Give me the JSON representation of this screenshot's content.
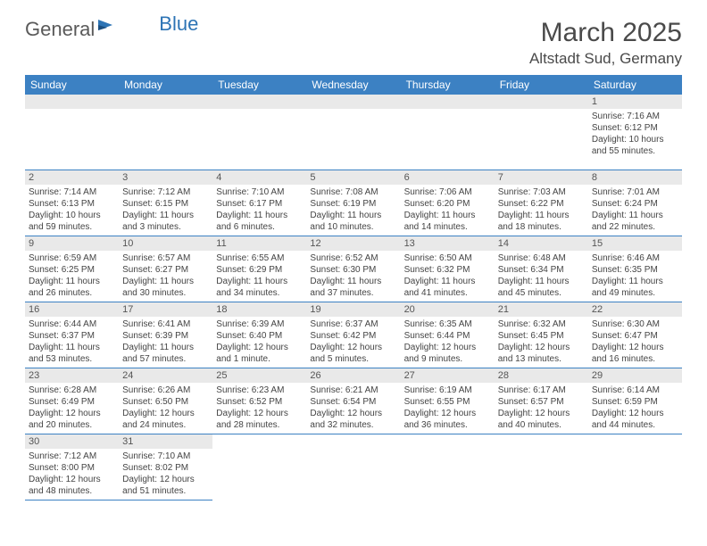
{
  "logo": {
    "part1": "General",
    "part2": "Blue"
  },
  "title": "March 2025",
  "location": "Altstadt Sud, Germany",
  "colors": {
    "header_bg": "#3c81c3",
    "header_text": "#ffffff",
    "daynum_bg": "#e9e9e9",
    "border": "#3c81c3",
    "logo_blue": "#2d74b5",
    "text": "#3e3e3e"
  },
  "day_headers": [
    "Sunday",
    "Monday",
    "Tuesday",
    "Wednesday",
    "Thursday",
    "Friday",
    "Saturday"
  ],
  "weeks": [
    [
      null,
      null,
      null,
      null,
      null,
      null,
      {
        "n": "1",
        "sr": "Sunrise: 7:16 AM",
        "ss": "Sunset: 6:12 PM",
        "dl": "Daylight: 10 hours and 55 minutes."
      }
    ],
    [
      {
        "n": "2",
        "sr": "Sunrise: 7:14 AM",
        "ss": "Sunset: 6:13 PM",
        "dl": "Daylight: 10 hours and 59 minutes."
      },
      {
        "n": "3",
        "sr": "Sunrise: 7:12 AM",
        "ss": "Sunset: 6:15 PM",
        "dl": "Daylight: 11 hours and 3 minutes."
      },
      {
        "n": "4",
        "sr": "Sunrise: 7:10 AM",
        "ss": "Sunset: 6:17 PM",
        "dl": "Daylight: 11 hours and 6 minutes."
      },
      {
        "n": "5",
        "sr": "Sunrise: 7:08 AM",
        "ss": "Sunset: 6:19 PM",
        "dl": "Daylight: 11 hours and 10 minutes."
      },
      {
        "n": "6",
        "sr": "Sunrise: 7:06 AM",
        "ss": "Sunset: 6:20 PM",
        "dl": "Daylight: 11 hours and 14 minutes."
      },
      {
        "n": "7",
        "sr": "Sunrise: 7:03 AM",
        "ss": "Sunset: 6:22 PM",
        "dl": "Daylight: 11 hours and 18 minutes."
      },
      {
        "n": "8",
        "sr": "Sunrise: 7:01 AM",
        "ss": "Sunset: 6:24 PM",
        "dl": "Daylight: 11 hours and 22 minutes."
      }
    ],
    [
      {
        "n": "9",
        "sr": "Sunrise: 6:59 AM",
        "ss": "Sunset: 6:25 PM",
        "dl": "Daylight: 11 hours and 26 minutes."
      },
      {
        "n": "10",
        "sr": "Sunrise: 6:57 AM",
        "ss": "Sunset: 6:27 PM",
        "dl": "Daylight: 11 hours and 30 minutes."
      },
      {
        "n": "11",
        "sr": "Sunrise: 6:55 AM",
        "ss": "Sunset: 6:29 PM",
        "dl": "Daylight: 11 hours and 34 minutes."
      },
      {
        "n": "12",
        "sr": "Sunrise: 6:52 AM",
        "ss": "Sunset: 6:30 PM",
        "dl": "Daylight: 11 hours and 37 minutes."
      },
      {
        "n": "13",
        "sr": "Sunrise: 6:50 AM",
        "ss": "Sunset: 6:32 PM",
        "dl": "Daylight: 11 hours and 41 minutes."
      },
      {
        "n": "14",
        "sr": "Sunrise: 6:48 AM",
        "ss": "Sunset: 6:34 PM",
        "dl": "Daylight: 11 hours and 45 minutes."
      },
      {
        "n": "15",
        "sr": "Sunrise: 6:46 AM",
        "ss": "Sunset: 6:35 PM",
        "dl": "Daylight: 11 hours and 49 minutes."
      }
    ],
    [
      {
        "n": "16",
        "sr": "Sunrise: 6:44 AM",
        "ss": "Sunset: 6:37 PM",
        "dl": "Daylight: 11 hours and 53 minutes."
      },
      {
        "n": "17",
        "sr": "Sunrise: 6:41 AM",
        "ss": "Sunset: 6:39 PM",
        "dl": "Daylight: 11 hours and 57 minutes."
      },
      {
        "n": "18",
        "sr": "Sunrise: 6:39 AM",
        "ss": "Sunset: 6:40 PM",
        "dl": "Daylight: 12 hours and 1 minute."
      },
      {
        "n": "19",
        "sr": "Sunrise: 6:37 AM",
        "ss": "Sunset: 6:42 PM",
        "dl": "Daylight: 12 hours and 5 minutes."
      },
      {
        "n": "20",
        "sr": "Sunrise: 6:35 AM",
        "ss": "Sunset: 6:44 PM",
        "dl": "Daylight: 12 hours and 9 minutes."
      },
      {
        "n": "21",
        "sr": "Sunrise: 6:32 AM",
        "ss": "Sunset: 6:45 PM",
        "dl": "Daylight: 12 hours and 13 minutes."
      },
      {
        "n": "22",
        "sr": "Sunrise: 6:30 AM",
        "ss": "Sunset: 6:47 PM",
        "dl": "Daylight: 12 hours and 16 minutes."
      }
    ],
    [
      {
        "n": "23",
        "sr": "Sunrise: 6:28 AM",
        "ss": "Sunset: 6:49 PM",
        "dl": "Daylight: 12 hours and 20 minutes."
      },
      {
        "n": "24",
        "sr": "Sunrise: 6:26 AM",
        "ss": "Sunset: 6:50 PM",
        "dl": "Daylight: 12 hours and 24 minutes."
      },
      {
        "n": "25",
        "sr": "Sunrise: 6:23 AM",
        "ss": "Sunset: 6:52 PM",
        "dl": "Daylight: 12 hours and 28 minutes."
      },
      {
        "n": "26",
        "sr": "Sunrise: 6:21 AM",
        "ss": "Sunset: 6:54 PM",
        "dl": "Daylight: 12 hours and 32 minutes."
      },
      {
        "n": "27",
        "sr": "Sunrise: 6:19 AM",
        "ss": "Sunset: 6:55 PM",
        "dl": "Daylight: 12 hours and 36 minutes."
      },
      {
        "n": "28",
        "sr": "Sunrise: 6:17 AM",
        "ss": "Sunset: 6:57 PM",
        "dl": "Daylight: 12 hours and 40 minutes."
      },
      {
        "n": "29",
        "sr": "Sunrise: 6:14 AM",
        "ss": "Sunset: 6:59 PM",
        "dl": "Daylight: 12 hours and 44 minutes."
      }
    ],
    [
      {
        "n": "30",
        "sr": "Sunrise: 7:12 AM",
        "ss": "Sunset: 8:00 PM",
        "dl": "Daylight: 12 hours and 48 minutes."
      },
      {
        "n": "31",
        "sr": "Sunrise: 7:10 AM",
        "ss": "Sunset: 8:02 PM",
        "dl": "Daylight: 12 hours and 51 minutes."
      },
      null,
      null,
      null,
      null,
      null
    ]
  ]
}
